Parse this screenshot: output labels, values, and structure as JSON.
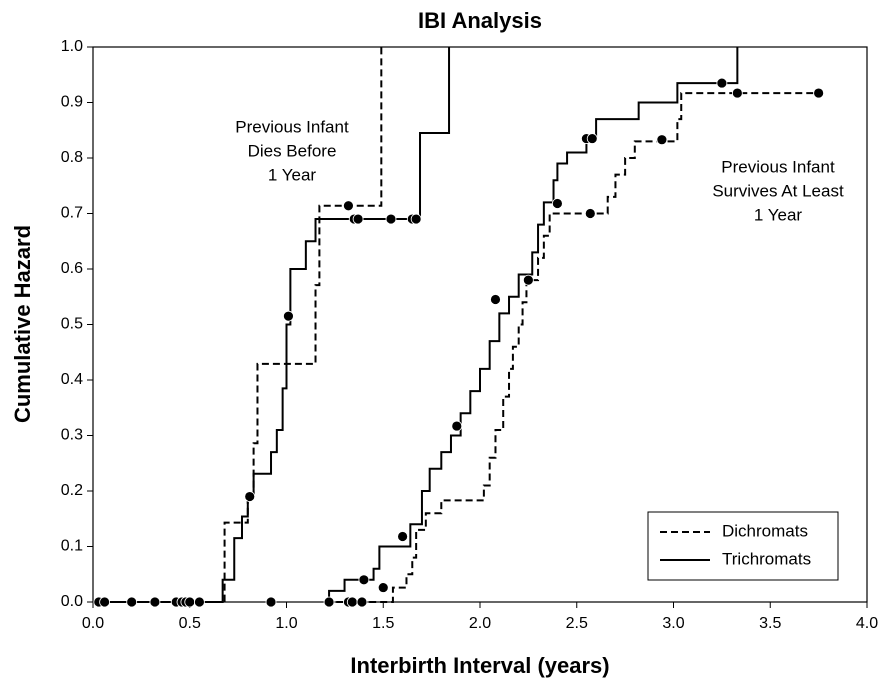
{
  "chart_data": {
    "type": "step",
    "title": "IBI Analysis",
    "x_label": "Interbirth Interval (years)",
    "y_label": "Cumulative Hazard",
    "xlim": [
      0,
      4
    ],
    "ylim": [
      0,
      1
    ],
    "xticks": [
      {
        "value": 0,
        "label": "0.0"
      },
      0.5,
      {
        "value": 1,
        "label": "1.0"
      },
      1.5,
      {
        "value": 2,
        "label": "2.0"
      },
      2.5,
      {
        "value": 3,
        "label": "3.0"
      },
      3.5,
      {
        "value": 4,
        "label": "4.0"
      }
    ],
    "yticks": [
      {
        "value": 0,
        "label": "0.0"
      },
      0.1,
      0.2,
      0.3,
      0.4,
      0.5,
      0.6,
      0.7,
      0.8,
      0.9,
      {
        "value": 1,
        "label": "1.0"
      }
    ],
    "legend": "lower right",
    "series": [
      {
        "name": "Dichromats",
        "color": "#000000",
        "dashed": true,
        "x": [
          0,
          0.68,
          0.8,
          0.83,
          0.85,
          1.15,
          1.17,
          1.49,
          null,
          1.2,
          1.55,
          1.62,
          1.65,
          1.67,
          1.72,
          1.8,
          2.02,
          2.05,
          2.08,
          2.12,
          2.15,
          2.17,
          2.2,
          2.22,
          2.24,
          2.3,
          2.33,
          2.36,
          2.66,
          2.7,
          2.75,
          2.8,
          3.02,
          3.04,
          3.75
        ],
        "values": [
          0,
          0.143,
          0.19,
          0.286,
          0.429,
          0.571,
          0.714,
          1.0,
          null,
          0,
          0.026,
          0.05,
          0.08,
          0.13,
          0.16,
          0.183,
          0.21,
          0.26,
          0.31,
          0.37,
          0.42,
          0.46,
          0.5,
          0.54,
          0.58,
          0.62,
          0.66,
          0.7,
          0.73,
          0.77,
          0.8,
          0.83,
          0.87,
          0.917,
          0.917
        ]
      },
      {
        "name": "Trichromats",
        "color": "#000000",
        "dashed": false,
        "x": [
          0,
          0.67,
          0.73,
          0.77,
          0.8,
          0.83,
          0.92,
          0.95,
          0.98,
          1.0,
          1.02,
          1.1,
          1.15,
          1.69,
          1.84,
          null,
          1.2,
          1.22,
          1.3,
          1.45,
          1.48,
          1.64,
          1.7,
          1.74,
          1.8,
          1.85,
          1.9,
          1.95,
          2.0,
          2.05,
          2.1,
          2.15,
          2.2,
          2.27,
          2.3,
          2.33,
          2.38,
          2.4,
          2.45,
          2.55,
          2.6,
          2.82,
          3.02,
          3.33
        ],
        "values": [
          0,
          0.04,
          0.115,
          0.154,
          0.192,
          0.231,
          0.27,
          0.31,
          0.385,
          0.5,
          0.6,
          0.65,
          0.69,
          0.845,
          1.0,
          null,
          0,
          0.02,
          0.04,
          0.06,
          0.1,
          0.14,
          0.2,
          0.24,
          0.27,
          0.3,
          0.34,
          0.38,
          0.42,
          0.47,
          0.52,
          0.55,
          0.59,
          0.63,
          0.68,
          0.72,
          0.76,
          0.79,
          0.81,
          0.84,
          0.87,
          0.9,
          0.935,
          1.0
        ]
      }
    ],
    "censored": {
      "x": [
        0.03,
        0.06,
        0.2,
        0.32,
        0.43,
        0.46,
        0.48,
        0.5,
        0.55,
        0.92,
        1.22,
        1.32,
        1.34,
        1.39,
        0.81,
        1.01,
        1.32,
        1.35,
        1.37,
        1.54,
        1.65,
        1.67,
        1.4,
        1.5,
        1.6,
        1.88,
        2.08,
        2.25,
        2.4,
        2.55,
        2.58,
        2.57,
        2.94,
        3.25,
        3.33,
        3.75
      ],
      "values": [
        0,
        0,
        0,
        0,
        0,
        0,
        0,
        0,
        0,
        0,
        0,
        0,
        0,
        0,
        0.19,
        0.515,
        0.714,
        0.69,
        0.69,
        0.69,
        0.69,
        0.69,
        0.04,
        0.026,
        0.118,
        0.317,
        0.545,
        0.58,
        0.718,
        0.835,
        0.835,
        0.7,
        0.833,
        0.935,
        0.917,
        0.917
      ]
    },
    "annotations": [
      [
        "Previous Infant",
        "Dies Before",
        "1 Year"
      ],
      [
        "Previous Infant",
        "Survives At Least",
        "1 Year"
      ]
    ]
  }
}
